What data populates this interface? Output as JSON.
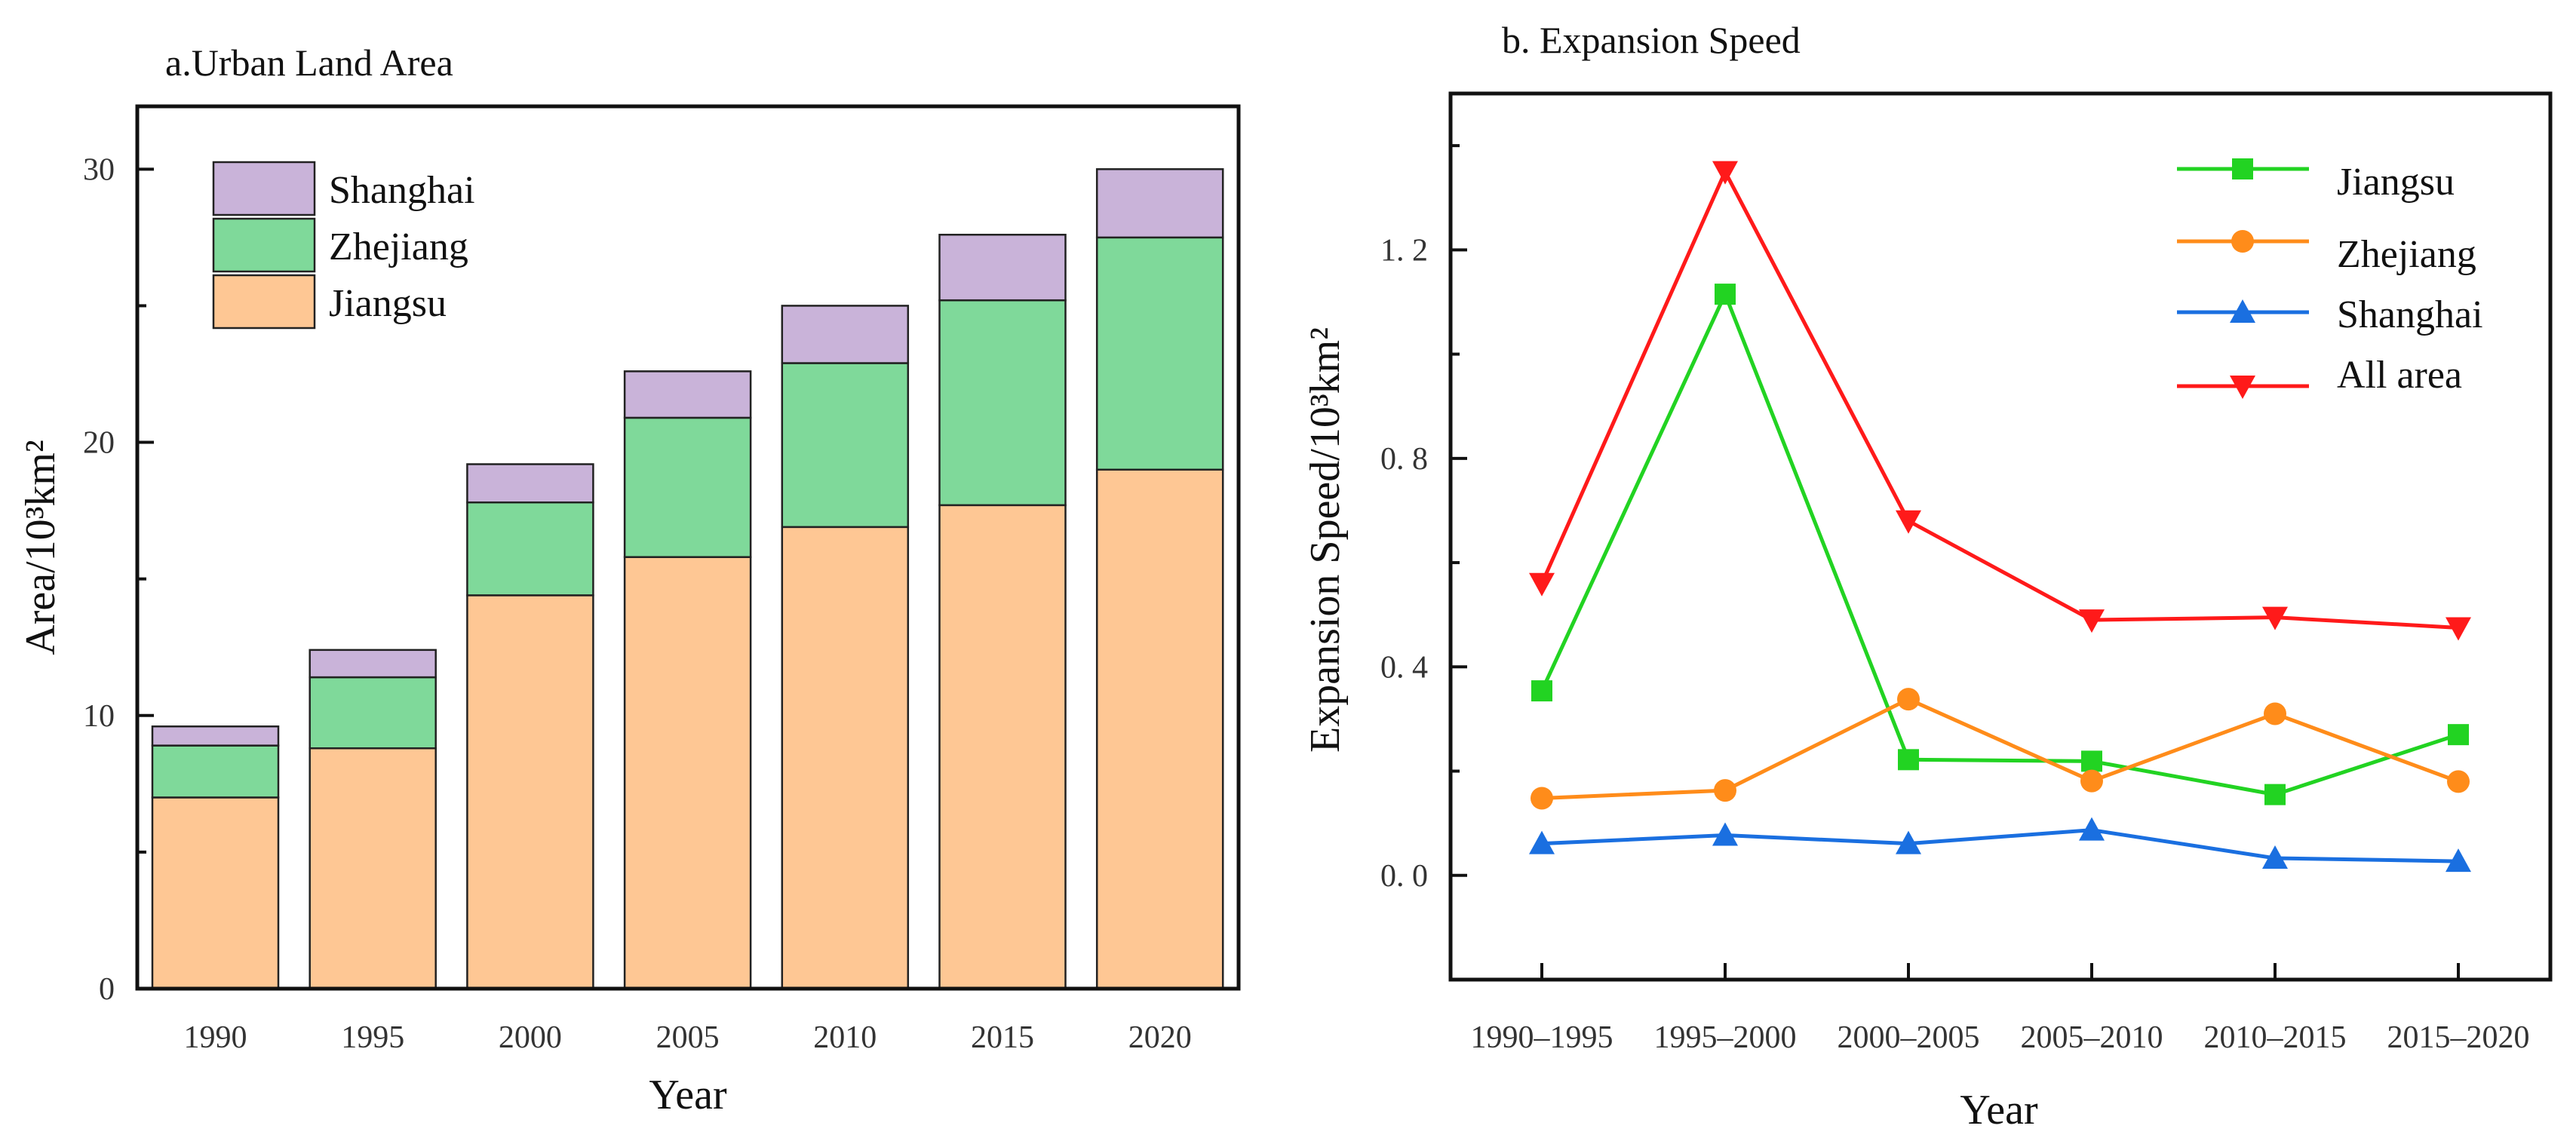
{
  "chart_data": [
    {
      "type": "bar",
      "stacked": true,
      "title": "a.Urban Land Area",
      "xlabel": "Year",
      "ylabel": "Area/10³km²",
      "categories": [
        "1990",
        "1995",
        "2000",
        "2005",
        "2010",
        "2015",
        "2020"
      ],
      "ylim": [
        0,
        32.3
      ],
      "yticks": [
        0,
        10,
        20,
        30
      ],
      "yticks_labels": [
        "0",
        "10",
        "20",
        "30"
      ],
      "legend_position": "top-left",
      "series": [
        {
          "name": "Jiangsu",
          "color": "#fec794",
          "values": [
            7.0,
            8.8,
            14.4,
            15.8,
            16.9,
            17.7,
            19.0
          ]
        },
        {
          "name": "Zhejiang",
          "color": "#7fd99a",
          "values": [
            1.9,
            2.6,
            3.4,
            5.1,
            6.0,
            7.5,
            8.5
          ]
        },
        {
          "name": "Shanghai",
          "color": "#c9b3d9",
          "values": [
            0.7,
            1.0,
            1.4,
            1.7,
            2.1,
            2.4,
            2.5
          ]
        }
      ],
      "legend_order": [
        "Shanghai",
        "Zhejiang",
        "Jiangsu"
      ]
    },
    {
      "type": "line",
      "title": "b. Expansion Speed",
      "xlabel": "Year",
      "ylabel": "Expansion Speed/10³km²",
      "categories": [
        "1990–1995",
        "1995–2000",
        "2000–2005",
        "2005–2010",
        "2010–2015",
        "2015–2020"
      ],
      "ylim": [
        -0.2,
        1.5
      ],
      "yticks": [
        0.0,
        0.4,
        0.8,
        1.2
      ],
      "yticks_labels": [
        "0. 0",
        "0. 4",
        "0. 8",
        "1. 2"
      ],
      "legend_position": "top-right",
      "series": [
        {
          "name": "Jiangsu",
          "color": "#22d322",
          "marker": "square",
          "values": [
            0.354,
            1.115,
            0.222,
            0.219,
            0.155,
            0.27
          ]
        },
        {
          "name": "Zhejiang",
          "color": "#ff8c1a",
          "marker": "circle",
          "values": [
            0.148,
            0.163,
            0.338,
            0.181,
            0.31,
            0.18
          ]
        },
        {
          "name": "Shanghai",
          "color": "#1a6fe0",
          "marker": "triangle-up",
          "values": [
            0.061,
            0.077,
            0.061,
            0.087,
            0.033,
            0.027
          ]
        },
        {
          "name": "All area",
          "color": "#ff1a1a",
          "marker": "triangle-down",
          "values": [
            0.56,
            1.35,
            0.68,
            0.49,
            0.495,
            0.475
          ]
        }
      ]
    }
  ]
}
